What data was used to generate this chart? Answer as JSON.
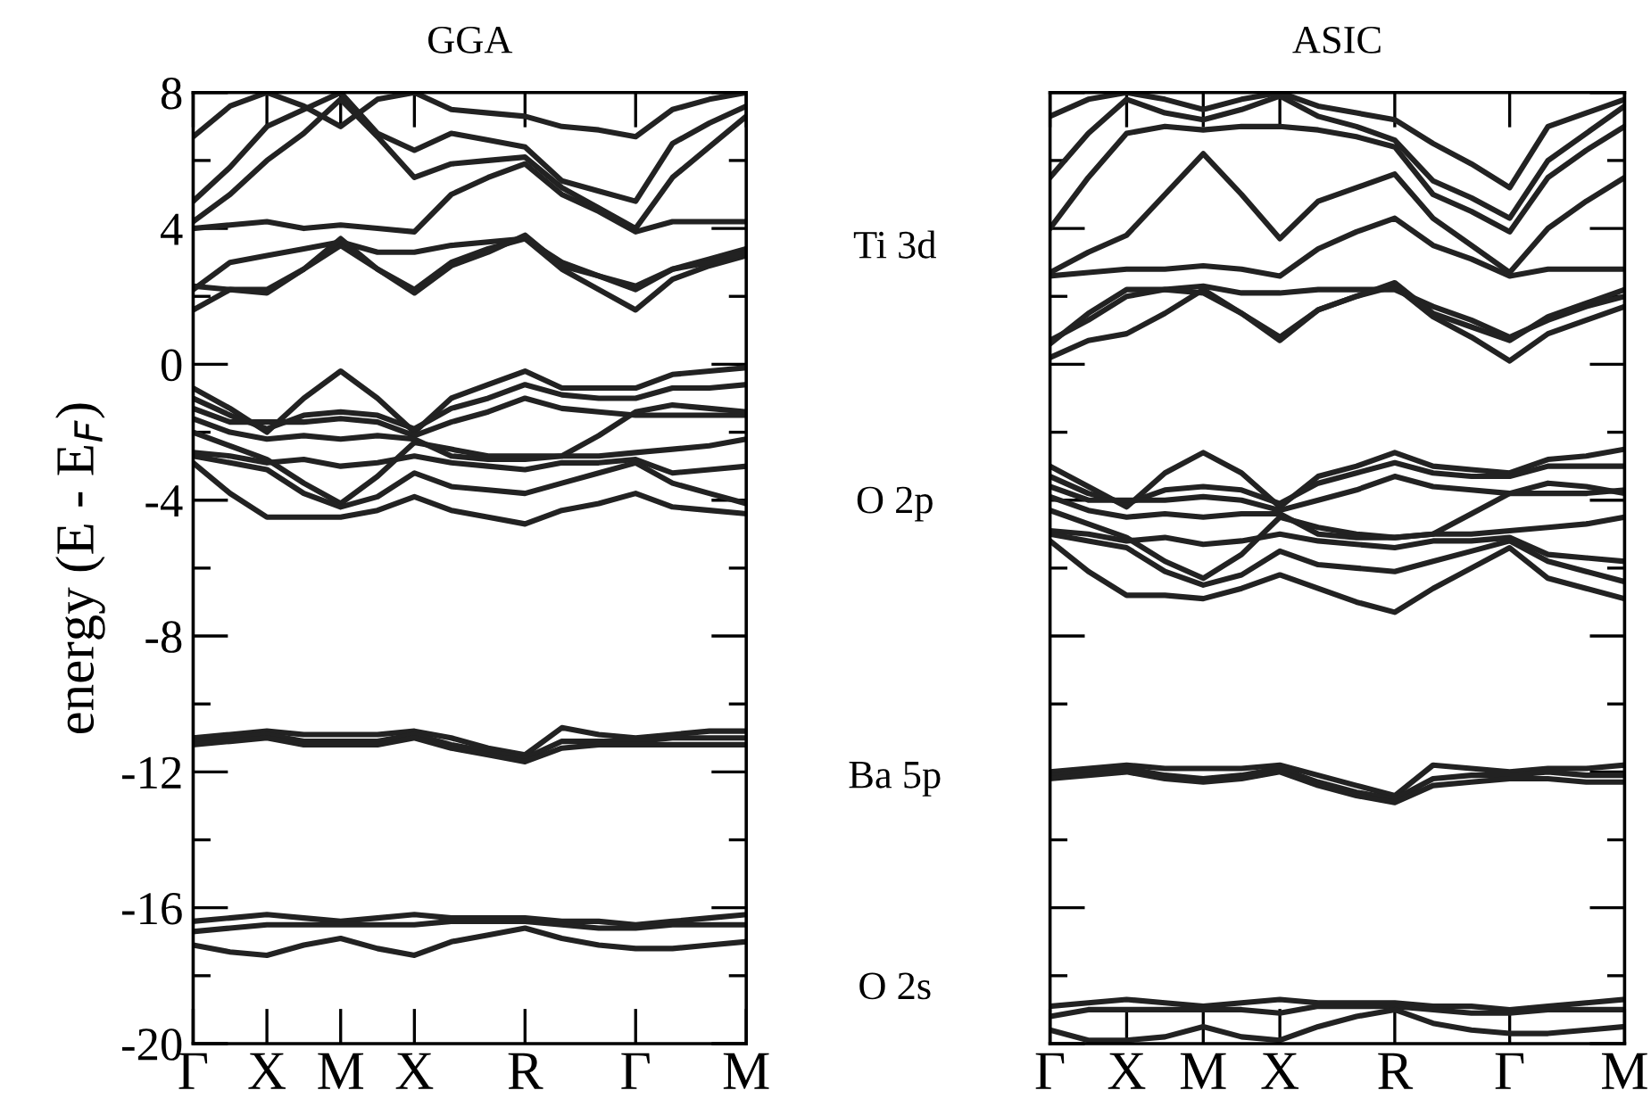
{
  "chart_data": [
    {
      "type": "line",
      "title": "GGA",
      "ylabel": "energy (E - E$_{F}$)",
      "categories": [
        "Γ",
        null,
        "X",
        null,
        "M",
        null,
        "X",
        null,
        null,
        "R",
        null,
        null,
        "Γ",
        null,
        null,
        "M"
      ],
      "ylim": [
        -20,
        8
      ],
      "yticks": [
        -20,
        {
          "value": -18,
          "label": null
        },
        -16,
        {
          "value": -14,
          "label": null
        },
        -12,
        {
          "value": -10,
          "label": null
        },
        -8,
        {
          "value": -6,
          "label": null
        },
        -4,
        {
          "value": -2,
          "label": null
        },
        0,
        {
          "value": 2,
          "label": null
        },
        4,
        {
          "value": 6,
          "label": null
        },
        8
      ],
      "line_style": "solid",
      "series": [
        {
          "color": "#222222",
          "values": [
            1.6,
            2.2,
            2.2,
            2.8,
            3.5,
            2.8,
            2.2,
            3.0,
            3.4,
            3.7,
            2.8,
            2.2,
            1.6,
            2.5,
            2.9,
            3.2
          ]
        },
        {
          "color": "#222222",
          "values": [
            2.2,
            3.0,
            3.2,
            3.4,
            3.6,
            3.3,
            3.3,
            3.5,
            3.6,
            3.7,
            3.0,
            2.6,
            2.2,
            2.8,
            3.1,
            3.4
          ]
        },
        {
          "color": "#222222",
          "values": [
            2.3,
            2.2,
            2.1,
            2.8,
            3.7,
            2.8,
            2.1,
            2.9,
            3.3,
            3.8,
            2.9,
            2.6,
            2.3,
            2.8,
            3.0,
            3.3
          ]
        },
        {
          "color": "#222222",
          "values": [
            4.0,
            4.1,
            4.2,
            4.0,
            4.1,
            4.0,
            3.9,
            5.0,
            5.5,
            5.9,
            5.0,
            4.5,
            3.9,
            4.2,
            4.2,
            4.2
          ]
        },
        {
          "color": "#222222",
          "values": [
            4.2,
            5.0,
            6.0,
            6.8,
            7.8,
            6.7,
            5.5,
            5.9,
            6.0,
            6.1,
            5.2,
            4.6,
            4.0,
            5.5,
            6.4,
            7.3
          ]
        },
        {
          "color": "#222222",
          "values": [
            4.8,
            5.8,
            7.0,
            7.5,
            8.0,
            6.8,
            6.3,
            6.8,
            6.6,
            6.4,
            5.4,
            5.1,
            4.8,
            6.5,
            7.1,
            7.6
          ]
        },
        {
          "color": "#222222",
          "values": [
            6.7,
            7.6,
            8.0,
            7.6,
            7.0,
            7.8,
            8.0,
            7.5,
            7.4,
            7.3,
            7.0,
            6.9,
            6.7,
            7.5,
            7.8,
            8.0
          ]
        },
        {
          "color": "#222222",
          "values": [
            -0.7,
            -1.3,
            -2.0,
            -1.0,
            -0.2,
            -1.0,
            -2.0,
            -1.0,
            -0.6,
            -0.2,
            -0.7,
            -0.7,
            -0.7,
            -0.3,
            -0.2,
            -0.1
          ]
        },
        {
          "color": "#222222",
          "values": [
            -1.0,
            -1.5,
            -1.9,
            -1.5,
            -1.4,
            -1.5,
            -1.9,
            -1.3,
            -1.0,
            -0.6,
            -0.9,
            -1.0,
            -1.0,
            -0.7,
            -0.7,
            -0.6
          ]
        },
        {
          "color": "#222222",
          "values": [
            -1.3,
            -1.7,
            -1.7,
            -1.7,
            -1.6,
            -1.7,
            -2.1,
            -1.7,
            -1.4,
            -1.0,
            -1.3,
            -1.4,
            -1.5,
            -1.5,
            -1.5,
            -1.5
          ]
        },
        {
          "color": "#222222",
          "values": [
            -1.6,
            -2.0,
            -2.2,
            -2.1,
            -2.2,
            -2.1,
            -2.2,
            -2.7,
            -2.8,
            -2.8,
            -2.7,
            -2.1,
            -1.4,
            -1.2,
            -1.3,
            -1.4
          ]
        },
        {
          "color": "#222222",
          "values": [
            -2.0,
            -2.4,
            -2.8,
            -3.5,
            -4.1,
            -3.3,
            -2.3,
            -2.5,
            -2.7,
            -2.7,
            -2.7,
            -2.7,
            -2.6,
            -2.5,
            -2.4,
            -2.2
          ]
        },
        {
          "color": "#222222",
          "values": [
            -2.6,
            -2.7,
            -2.9,
            -2.8,
            -3.0,
            -2.9,
            -2.7,
            -2.9,
            -3.0,
            -3.1,
            -2.9,
            -2.9,
            -2.8,
            -3.2,
            -3.1,
            -3.0
          ]
        },
        {
          "color": "#222222",
          "values": [
            -2.7,
            -2.9,
            -3.1,
            -3.8,
            -4.2,
            -3.9,
            -3.2,
            -3.6,
            -3.7,
            -3.8,
            -3.5,
            -3.2,
            -2.9,
            -3.5,
            -3.8,
            -4.1
          ]
        },
        {
          "color": "#222222",
          "values": [
            -2.9,
            -3.8,
            -4.5,
            -4.5,
            -4.5,
            -4.3,
            -3.9,
            -4.3,
            -4.5,
            -4.7,
            -4.3,
            -4.1,
            -3.8,
            -4.2,
            -4.3,
            -4.4
          ]
        },
        {
          "color": "#222222",
          "values": [
            -11.0,
            -10.9,
            -10.8,
            -10.9,
            -10.9,
            -10.9,
            -10.8,
            -11.0,
            -11.3,
            -11.5,
            -10.7,
            -10.9,
            -11.0,
            -10.9,
            -10.8,
            -10.8
          ]
        },
        {
          "color": "#222222",
          "values": [
            -11.1,
            -11.0,
            -10.9,
            -11.1,
            -11.1,
            -11.1,
            -10.9,
            -11.2,
            -11.4,
            -11.6,
            -11.1,
            -11.1,
            -11.1,
            -11.0,
            -11.0,
            -11.0
          ]
        },
        {
          "color": "#222222",
          "values": [
            -11.2,
            -11.1,
            -11.0,
            -11.2,
            -11.2,
            -11.2,
            -11.0,
            -11.3,
            -11.5,
            -11.7,
            -11.3,
            -11.2,
            -11.2,
            -11.2,
            -11.2,
            -11.2
          ]
        },
        {
          "color": "#222222",
          "values": [
            -16.4,
            -16.3,
            -16.2,
            -16.3,
            -16.4,
            -16.3,
            -16.2,
            -16.3,
            -16.3,
            -16.3,
            -16.4,
            -16.4,
            -16.5,
            -16.4,
            -16.3,
            -16.2
          ]
        },
        {
          "color": "#222222",
          "values": [
            -16.7,
            -16.6,
            -16.5,
            -16.5,
            -16.5,
            -16.5,
            -16.5,
            -16.4,
            -16.4,
            -16.4,
            -16.5,
            -16.6,
            -16.6,
            -16.5,
            -16.5,
            -16.5
          ]
        },
        {
          "color": "#222222",
          "values": [
            -17.1,
            -17.3,
            -17.4,
            -17.1,
            -16.9,
            -17.2,
            -17.4,
            -17.0,
            -16.8,
            -16.6,
            -16.9,
            -17.1,
            -17.2,
            -17.2,
            -17.1,
            -17.0
          ]
        }
      ]
    },
    {
      "type": "line",
      "title": "ASIC",
      "categories": [
        "Γ",
        null,
        "X",
        null,
        "M",
        null,
        "X",
        null,
        null,
        "R",
        null,
        null,
        "Γ",
        null,
        null,
        "M"
      ],
      "ylim": [
        -20,
        8
      ],
      "yticks": [
        -20,
        {
          "value": -18,
          "label": null
        },
        -16,
        {
          "value": -14,
          "label": null
        },
        -12,
        {
          "value": -10,
          "label": null
        },
        -8,
        {
          "value": -6,
          "label": null
        },
        -4,
        {
          "value": -2,
          "label": null
        },
        0,
        {
          "value": 2,
          "label": null
        },
        4,
        {
          "value": 6,
          "label": null
        },
        8
      ],
      "tick_labels": "x",
      "line_style": "solid",
      "annotations": [
        "Ti 3d",
        "O 2p",
        "Ba 5p",
        "O 2s"
      ],
      "series": [
        {
          "color": "#222222",
          "values": [
            0.2,
            0.7,
            0.9,
            1.5,
            2.2,
            1.5,
            0.8,
            1.6,
            2.0,
            2.3,
            1.4,
            0.8,
            0.1,
            0.9,
            1.3,
            1.7
          ]
        },
        {
          "color": "#222222",
          "values": [
            0.7,
            1.3,
            2.0,
            2.2,
            2.3,
            2.1,
            2.1,
            2.2,
            2.2,
            2.2,
            1.7,
            1.3,
            0.8,
            1.3,
            1.7,
            2.0
          ]
        },
        {
          "color": "#222222",
          "values": [
            0.6,
            1.5,
            2.2,
            2.2,
            2.1,
            1.5,
            0.7,
            1.6,
            2.0,
            2.4,
            1.5,
            1.1,
            0.7,
            1.4,
            1.8,
            2.2
          ]
        },
        {
          "color": "#222222",
          "values": [
            2.6,
            2.7,
            2.8,
            2.8,
            2.9,
            2.8,
            2.6,
            3.4,
            3.9,
            4.3,
            3.5,
            3.1,
            2.6,
            2.8,
            2.8,
            2.8
          ]
        },
        {
          "color": "#222222",
          "values": [
            2.7,
            3.3,
            3.8,
            5.0,
            6.2,
            5.0,
            3.7,
            4.8,
            5.2,
            5.6,
            4.3,
            3.5,
            2.7,
            4.0,
            4.8,
            5.5
          ]
        },
        {
          "color": "#222222",
          "values": [
            4.0,
            5.5,
            6.8,
            7.0,
            6.9,
            7.0,
            7.0,
            6.9,
            6.7,
            6.4,
            5.0,
            4.5,
            3.9,
            5.5,
            6.3,
            7.0
          ]
        },
        {
          "color": "#222222",
          "values": [
            5.5,
            6.8,
            7.8,
            7.4,
            7.2,
            7.5,
            7.9,
            7.3,
            7.0,
            6.6,
            5.4,
            4.9,
            4.3,
            6.0,
            6.8,
            7.6
          ]
        },
        {
          "color": "#222222",
          "values": [
            7.3,
            7.8,
            8.0,
            7.8,
            7.5,
            7.8,
            8.0,
            7.6,
            7.4,
            7.2,
            6.5,
            5.9,
            5.2,
            7.0,
            7.4,
            7.8
          ]
        },
        {
          "color": "#222222",
          "values": [
            -3.0,
            -3.6,
            -4.2,
            -3.2,
            -2.6,
            -3.2,
            -4.2,
            -3.3,
            -3.0,
            -2.6,
            -3.0,
            -3.1,
            -3.2,
            -2.8,
            -2.7,
            -2.5
          ]
        },
        {
          "color": "#222222",
          "values": [
            -3.3,
            -3.8,
            -4.1,
            -3.7,
            -3.6,
            -3.7,
            -4.1,
            -3.5,
            -3.2,
            -2.9,
            -3.2,
            -3.3,
            -3.3,
            -3.0,
            -3.0,
            -3.0
          ]
        },
        {
          "color": "#222222",
          "values": [
            -3.6,
            -4.0,
            -4.0,
            -4.0,
            -3.9,
            -4.0,
            -4.3,
            -4.0,
            -3.7,
            -3.3,
            -3.6,
            -3.7,
            -3.8,
            -3.8,
            -3.8,
            -3.7
          ]
        },
        {
          "color": "#222222",
          "values": [
            -3.9,
            -4.3,
            -4.5,
            -4.4,
            -4.5,
            -4.4,
            -4.4,
            -5.0,
            -5.1,
            -5.1,
            -5.0,
            -4.4,
            -3.8,
            -3.5,
            -3.6,
            -3.8
          ]
        },
        {
          "color": "#222222",
          "values": [
            -4.3,
            -4.7,
            -5.1,
            -5.8,
            -6.3,
            -5.6,
            -4.5,
            -4.8,
            -5.0,
            -5.1,
            -5.0,
            -5.0,
            -4.9,
            -4.8,
            -4.7,
            -4.5
          ]
        },
        {
          "color": "#222222",
          "values": [
            -4.9,
            -5.0,
            -5.2,
            -5.1,
            -5.3,
            -5.2,
            -5.0,
            -5.2,
            -5.3,
            -5.4,
            -5.2,
            -5.2,
            -5.1,
            -5.6,
            -5.7,
            -5.8
          ]
        },
        {
          "color": "#222222",
          "values": [
            -5.0,
            -5.2,
            -5.4,
            -6.1,
            -6.5,
            -6.2,
            -5.5,
            -5.9,
            -6.0,
            -6.1,
            -5.8,
            -5.5,
            -5.2,
            -5.8,
            -6.1,
            -6.4
          ]
        },
        {
          "color": "#222222",
          "values": [
            -5.2,
            -6.1,
            -6.8,
            -6.8,
            -6.9,
            -6.6,
            -6.2,
            -6.6,
            -7.0,
            -7.3,
            -6.6,
            -6.0,
            -5.4,
            -6.3,
            -6.6,
            -6.9
          ]
        },
        {
          "color": "#222222",
          "values": [
            -12.0,
            -11.9,
            -11.8,
            -11.9,
            -11.9,
            -11.9,
            -11.8,
            -12.1,
            -12.4,
            -12.7,
            -11.8,
            -11.9,
            -12.0,
            -11.9,
            -11.9,
            -11.8
          ]
        },
        {
          "color": "#222222",
          "values": [
            -12.1,
            -12.0,
            -11.9,
            -12.1,
            -12.2,
            -12.1,
            -11.9,
            -12.3,
            -12.6,
            -12.8,
            -12.2,
            -12.1,
            -12.1,
            -12.0,
            -12.1,
            -12.1
          ]
        },
        {
          "color": "#222222",
          "values": [
            -12.2,
            -12.1,
            -12.0,
            -12.2,
            -12.3,
            -12.2,
            -12.0,
            -12.4,
            -12.7,
            -12.9,
            -12.4,
            -12.3,
            -12.2,
            -12.2,
            -12.3,
            -12.3
          ]
        },
        {
          "color": "#222222",
          "values": [
            -18.9,
            -18.8,
            -18.7,
            -18.8,
            -18.9,
            -18.8,
            -18.7,
            -18.8,
            -18.8,
            -18.8,
            -18.9,
            -18.9,
            -19.0,
            -18.9,
            -18.8,
            -18.7
          ]
        },
        {
          "color": "#222222",
          "values": [
            -19.2,
            -19.0,
            -19.0,
            -19.0,
            -19.0,
            -19.0,
            -19.1,
            -18.9,
            -18.9,
            -18.9,
            -19.0,
            -19.1,
            -19.1,
            -19.0,
            -19.0,
            -19.0
          ]
        },
        {
          "color": "#222222",
          "values": [
            -19.6,
            -19.9,
            -19.9,
            -19.8,
            -19.5,
            -19.8,
            -19.9,
            -19.5,
            -19.2,
            -19.0,
            -19.4,
            -19.6,
            -19.7,
            -19.7,
            -19.6,
            -19.5
          ]
        }
      ]
    }
  ]
}
